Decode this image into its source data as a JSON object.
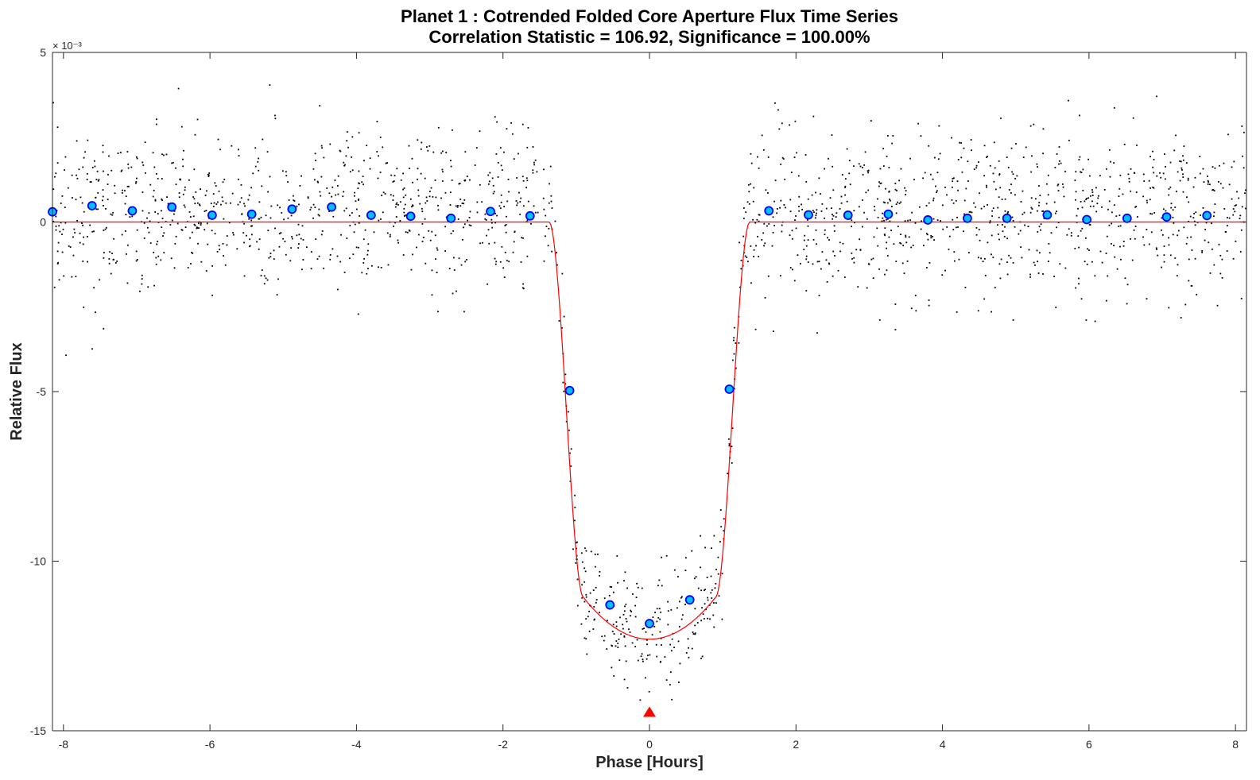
{
  "chart_data": {
    "type": "scatter",
    "title": "Planet 1 : Cotrended Folded Core Aperture Flux Time Series",
    "subtitle": "Correlation Statistic = 106.92, Significance = 100.00%",
    "xlabel": "Phase [Hours]",
    "ylabel": "Relative Flux",
    "y_scale_multiplier": "× 10⁻³",
    "xlim": [
      -8.15,
      8.15
    ],
    "ylim": [
      -15,
      5
    ],
    "xticks": [
      -8,
      -6,
      -4,
      -2,
      0,
      2,
      4,
      6,
      8
    ],
    "yticks": [
      5,
      0,
      -5,
      -10,
      -15
    ],
    "grid": false,
    "series": [
      {
        "kind": "binned-average",
        "color": "#00bfff",
        "edge_color": "#0000ff",
        "x": [
          -8.15,
          -7.61,
          -7.06,
          -6.52,
          -5.97,
          -5.43,
          -4.88,
          -4.34,
          -3.8,
          -3.26,
          -2.71,
          -2.17,
          -1.63,
          -1.09,
          -0.54,
          0.0,
          0.55,
          1.09,
          1.63,
          2.17,
          2.71,
          3.26,
          3.8,
          4.34,
          4.88,
          5.43,
          5.97,
          6.52,
          7.06,
          7.61
        ],
        "y": [
          0.3,
          0.48,
          0.33,
          0.44,
          0.2,
          0.23,
          0.38,
          0.44,
          0.2,
          0.17,
          0.11,
          0.31,
          0.18,
          -4.97,
          -11.29,
          -11.84,
          -11.14,
          -4.93,
          0.33,
          0.21,
          0.2,
          0.23,
          0.06,
          0.11,
          0.11,
          0.21,
          0.07,
          0.11,
          0.15,
          0.19
        ]
      },
      {
        "kind": "transit-model",
        "color": "#ff0000",
        "depth": -12.3,
        "ingress_x": [
          -1.37,
          -0.9
        ],
        "egress_x": [
          0.9,
          1.37
        ]
      },
      {
        "kind": "folded-flux-samples",
        "color": "#000000",
        "out_of_transit_scatter": 1.2
      }
    ],
    "epoch_marker": {
      "x": 0,
      "y": -14.45,
      "color": "#ff0000",
      "shape": "triangle"
    }
  }
}
